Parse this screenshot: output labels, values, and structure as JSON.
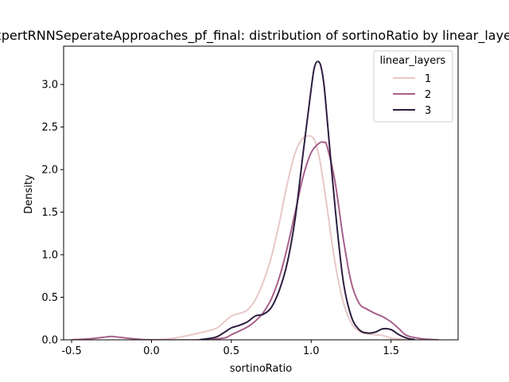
{
  "chart_data": {
    "type": "line",
    "title": "ExpertRNNSeperateApproaches_pf_final: distribution of sortinoRatio by linear_layers",
    "xlabel": "sortinoRatio",
    "ylabel": "Density",
    "xlim": [
      -0.55,
      1.92
    ],
    "ylim": [
      0,
      3.45
    ],
    "xticks": [
      -0.5,
      0.0,
      0.5,
      1.0,
      1.5
    ],
    "xtick_labels": [
      "-0.5",
      "0.0",
      "0.5",
      "1.0",
      "1.5"
    ],
    "yticks": [
      0.0,
      0.5,
      1.0,
      1.5,
      2.0,
      2.5,
      3.0
    ],
    "ytick_labels": [
      "0.0",
      "0.5",
      "1.0",
      "1.5",
      "2.0",
      "2.5",
      "3.0"
    ],
    "grid": false,
    "legend": {
      "title": "linear_layers",
      "placement": "top-right"
    },
    "series": [
      {
        "name": "1",
        "color": "#e8c8c8",
        "x": [
          0.0,
          0.1,
          0.2,
          0.3,
          0.4,
          0.45,
          0.5,
          0.55,
          0.6,
          0.65,
          0.7,
          0.75,
          0.8,
          0.85,
          0.9,
          0.95,
          1.0,
          1.03,
          1.06,
          1.1,
          1.15,
          1.2,
          1.25,
          1.3,
          1.35,
          1.4,
          1.45,
          1.5,
          1.55,
          1.6
        ],
        "y": [
          0.0,
          0.01,
          0.04,
          0.08,
          0.13,
          0.2,
          0.28,
          0.31,
          0.35,
          0.47,
          0.68,
          0.97,
          1.37,
          1.83,
          2.2,
          2.37,
          2.39,
          2.3,
          2.05,
          1.55,
          0.9,
          0.45,
          0.2,
          0.1,
          0.07,
          0.06,
          0.05,
          0.02,
          0.01,
          0.0
        ]
      },
      {
        "name": "2",
        "color": "#a8608a",
        "x": [
          -0.5,
          -0.4,
          -0.3,
          -0.25,
          -0.2,
          -0.1,
          0.0,
          0.3,
          0.45,
          0.5,
          0.6,
          0.65,
          0.7,
          0.75,
          0.8,
          0.85,
          0.9,
          0.95,
          1.0,
          1.05,
          1.08,
          1.1,
          1.15,
          1.2,
          1.25,
          1.3,
          1.35,
          1.4,
          1.45,
          1.5,
          1.55,
          1.6,
          1.7,
          1.8
        ],
        "y": [
          0.0,
          0.01,
          0.03,
          0.04,
          0.03,
          0.01,
          0.0,
          0.0,
          0.02,
          0.06,
          0.15,
          0.22,
          0.32,
          0.48,
          0.73,
          1.08,
          1.5,
          1.92,
          2.2,
          2.31,
          2.32,
          2.27,
          1.85,
          1.2,
          0.68,
          0.43,
          0.36,
          0.31,
          0.27,
          0.21,
          0.13,
          0.05,
          0.01,
          0.0
        ]
      },
      {
        "name": "3",
        "color": "#2d1e3f",
        "x": [
          0.3,
          0.4,
          0.45,
          0.5,
          0.55,
          0.6,
          0.65,
          0.7,
          0.75,
          0.8,
          0.85,
          0.9,
          0.95,
          1.0,
          1.02,
          1.04,
          1.06,
          1.08,
          1.1,
          1.15,
          1.2,
          1.25,
          1.3,
          1.35,
          1.4,
          1.45,
          1.5,
          1.55,
          1.6,
          1.65
        ],
        "y": [
          0.0,
          0.03,
          0.08,
          0.14,
          0.17,
          0.21,
          0.28,
          0.3,
          0.38,
          0.58,
          0.9,
          1.43,
          2.2,
          2.95,
          3.2,
          3.27,
          3.22,
          3.0,
          2.6,
          1.55,
          0.7,
          0.28,
          0.12,
          0.08,
          0.09,
          0.13,
          0.12,
          0.06,
          0.02,
          0.0
        ]
      }
    ]
  }
}
